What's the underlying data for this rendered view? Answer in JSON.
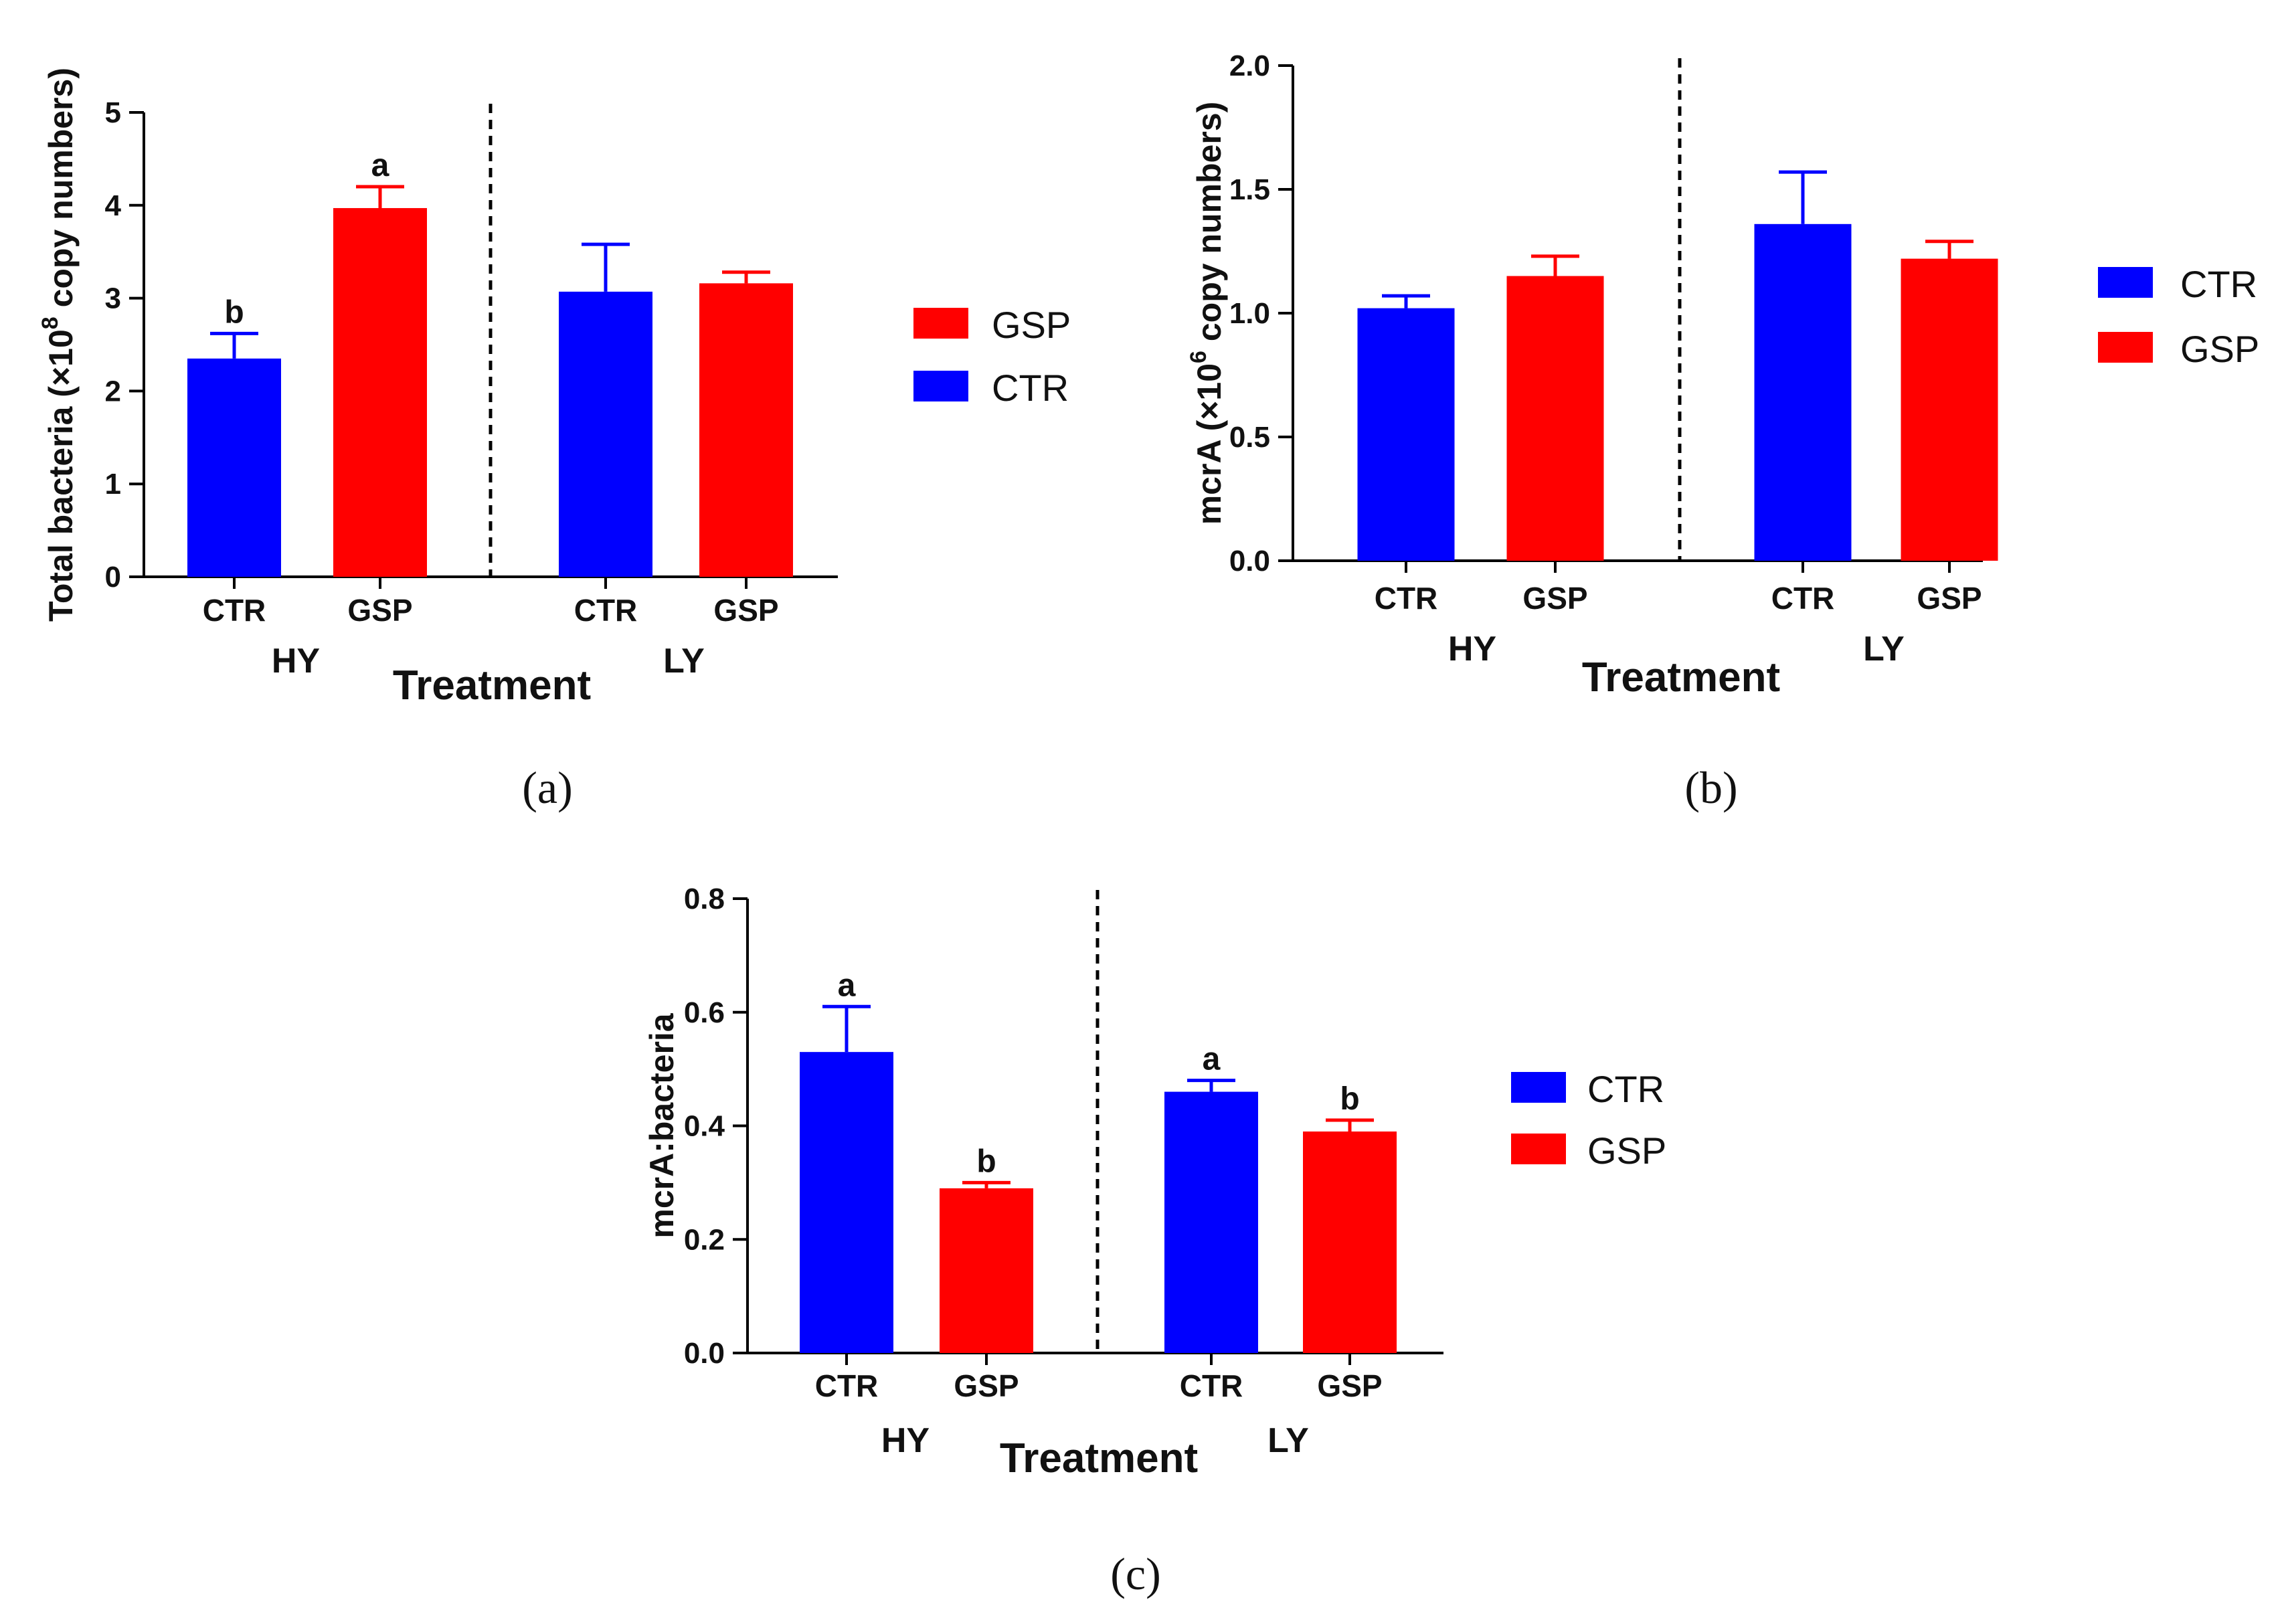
{
  "figure": {
    "colors": {
      "CTR": "#0000ff",
      "GSP": "#ff0000",
      "axis": "#000000"
    }
  },
  "chart_data": [
    {
      "id": "a",
      "panel_label": "(a)",
      "type": "bar",
      "title": "",
      "xlabel": "Treatment",
      "ylabel_prefix": "Total bacteria (×10",
      "ylabel_exp": "8",
      "ylabel_suffix": " copy numbers)",
      "ylim": [
        0,
        5
      ],
      "yticks": [
        0,
        1,
        2,
        3,
        4,
        5
      ],
      "ytick_labels": [
        "0",
        "1",
        "2",
        "3",
        "4",
        "5"
      ],
      "groups": [
        "HY",
        "LY"
      ],
      "bars": [
        {
          "group": "HY",
          "category": "CTR",
          "series": "CTR",
          "value": 2.35,
          "err": 0.27,
          "sig": "b"
        },
        {
          "group": "HY",
          "category": "GSP",
          "series": "GSP",
          "value": 3.97,
          "err": 0.23,
          "sig": "a"
        },
        {
          "group": "LY",
          "category": "CTR",
          "series": "CTR",
          "value": 3.07,
          "err": 0.51,
          "sig": ""
        },
        {
          "group": "LY",
          "category": "GSP",
          "series": "GSP",
          "value": 3.16,
          "err": 0.12,
          "sig": ""
        }
      ],
      "legend": [
        {
          "name": "GSP",
          "series": "GSP"
        },
        {
          "name": "CTR",
          "series": "CTR"
        }
      ],
      "legend_position": "right"
    },
    {
      "id": "b",
      "panel_label": "(b)",
      "type": "bar",
      "title": "",
      "xlabel": "Treatment",
      "ylabel_prefix": "mcrA (×10",
      "ylabel_exp": "6",
      "ylabel_suffix": " copy numbers)",
      "ylim": [
        0,
        2.0
      ],
      "yticks": [
        0,
        0.5,
        1.0,
        1.5,
        2.0
      ],
      "ytick_labels": [
        "0.0",
        "0.5",
        "1.0",
        "1.5",
        "2.0"
      ],
      "groups": [
        "HY",
        "LY"
      ],
      "bars": [
        {
          "group": "HY",
          "category": "CTR",
          "series": "CTR",
          "value": 1.02,
          "err": 0.05,
          "sig": ""
        },
        {
          "group": "HY",
          "category": "GSP",
          "series": "GSP",
          "value": 1.15,
          "err": 0.08,
          "sig": ""
        },
        {
          "group": "LY",
          "category": "CTR",
          "series": "CTR",
          "value": 1.36,
          "err": 0.21,
          "sig": ""
        },
        {
          "group": "LY",
          "category": "GSP",
          "series": "GSP",
          "value": 1.22,
          "err": 0.07,
          "sig": ""
        }
      ],
      "legend": [
        {
          "name": "CTR",
          "series": "CTR"
        },
        {
          "name": "GSP",
          "series": "GSP"
        }
      ],
      "legend_position": "right"
    },
    {
      "id": "c",
      "panel_label": "(c)",
      "type": "bar",
      "title": "",
      "xlabel": "Treatment",
      "ylabel_prefix": "mcrA:bacteria",
      "ylabel_exp": "",
      "ylabel_suffix": "",
      "ylim": [
        0,
        0.8
      ],
      "yticks": [
        0,
        0.2,
        0.4,
        0.6,
        0.8
      ],
      "ytick_labels": [
        "0.0",
        "0.2",
        "0.4",
        "0.6",
        "0.8"
      ],
      "groups": [
        "HY",
        "LY"
      ],
      "bars": [
        {
          "group": "HY",
          "category": "CTR",
          "series": "CTR",
          "value": 0.53,
          "err": 0.08,
          "sig": "a"
        },
        {
          "group": "HY",
          "category": "GSP",
          "series": "GSP",
          "value": 0.29,
          "err": 0.01,
          "sig": "b"
        },
        {
          "group": "LY",
          "category": "CTR",
          "series": "CTR",
          "value": 0.46,
          "err": 0.02,
          "sig": "a"
        },
        {
          "group": "LY",
          "category": "GSP",
          "series": "GSP",
          "value": 0.39,
          "err": 0.02,
          "sig": "b"
        }
      ],
      "legend": [
        {
          "name": "CTR",
          "series": "CTR"
        },
        {
          "name": "GSP",
          "series": "GSP"
        }
      ],
      "legend_position": "right"
    }
  ]
}
